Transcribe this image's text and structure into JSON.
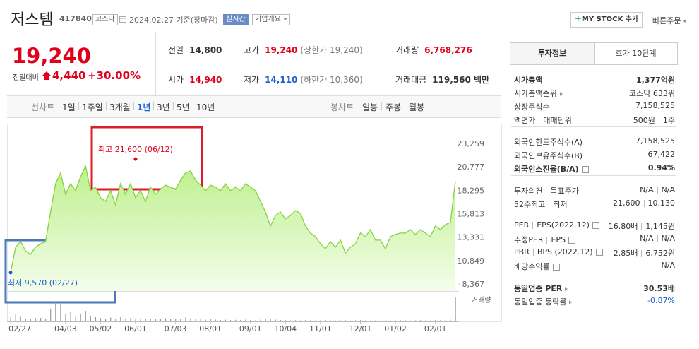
{
  "header": {
    "name": "저스템",
    "code": "417840",
    "market": "코스닥",
    "date": "2024.02.27 기준(장마감)",
    "realtime": "실시간",
    "company": "기업개요",
    "mystock": "MY STOCK 추가",
    "quick": "빠른주문"
  },
  "quote": {
    "price": "19,240",
    "change_label": "전일대비",
    "change": "4,440",
    "change_pct": "+30.00%",
    "cells": [
      [
        "전일",
        "14,800"
      ],
      [
        "고가",
        "19,240",
        "(상한가 19,240)"
      ],
      [
        "거래량",
        "6,768,276"
      ],
      [
        "시가",
        "14,940"
      ],
      [
        "저가",
        "14,110",
        "(하한가 10,360)"
      ],
      [
        "거래대금",
        "119,560 백만"
      ]
    ]
  },
  "tabs": {
    "line_label": "선차트",
    "line": [
      "1일",
      "1주일",
      "3개월",
      "1년",
      "3년",
      "5년",
      "10년"
    ],
    "active": 3,
    "candle_label": "봉차트",
    "candle": [
      "일봉",
      "주봉",
      "월봉"
    ]
  },
  "chart_data": {
    "type": "line",
    "color": "#86d33c",
    "values": [
      9570,
      12260,
      12860,
      11880,
      11510,
      12260,
      12630,
      12860,
      16000,
      18990,
      20120,
      17870,
      18990,
      18250,
      19740,
      20860,
      18250,
      18620,
      17500,
      17120,
      18250,
      16750,
      18990,
      17870,
      18990,
      17500,
      18250,
      17120,
      18620,
      17870,
      18390,
      18840,
      18620,
      18390,
      19370,
      20120,
      20340,
      19370,
      18840,
      18250,
      18840,
      18620,
      18250,
      18990,
      18250,
      18620,
      18250,
      18990,
      18620,
      18250,
      17120,
      16000,
      14500,
      15630,
      16000,
      15250,
      15630,
      16150,
      15850,
      14500,
      13760,
      13380,
      12630,
      12110,
      12860,
      12260,
      13010,
      11660,
      12260,
      12630,
      13760,
      13380,
      14130,
      13010,
      13010,
      12110,
      13380,
      13610,
      13760,
      13760,
      14130,
      13610,
      14130,
      13760,
      13380,
      14500,
      14130,
      14650,
      14880,
      19240
    ],
    "ylim": [
      7620,
      24600
    ],
    "yticks": [
      {
        "value": 23259,
        "label": "23,259"
      },
      {
        "value": 20777,
        "label": "20,777"
      },
      {
        "value": 18295,
        "label": "18,295"
      },
      {
        "value": 15813,
        "label": "15,813"
      },
      {
        "value": 13331,
        "label": "13,331"
      },
      {
        "value": 10849,
        "label": "10,849"
      },
      {
        "value": 8367,
        "label": "8,367"
      }
    ],
    "xticks": [
      {
        "value": 0,
        "label": "02/27"
      },
      {
        "value": 11,
        "label": "04/03"
      },
      {
        "value": 18,
        "label": "05/02"
      },
      {
        "value": 25,
        "label": "06/01"
      },
      {
        "value": 33,
        "label": "07/03"
      },
      {
        "value": 40,
        "label": "08/01"
      },
      {
        "value": 48,
        "label": "09/01"
      },
      {
        "value": 55,
        "label": "10/04"
      },
      {
        "value": 62,
        "label": "11/01"
      },
      {
        "value": 70,
        "label": "12/01"
      },
      {
        "value": 77,
        "label": "01/02"
      },
      {
        "value": 85,
        "label": "02/01"
      }
    ],
    "annotations": [
      {
        "text": "최고 21,600 (06/12)",
        "value": 21600,
        "x": 25,
        "color": "#e0001b"
      },
      {
        "text": "최저 9,570 (02/27)",
        "value": 9570,
        "x": 0,
        "color": "#1a5fd0"
      }
    ],
    "volume": {
      "name": "거래량",
      "color": "#9a9a9a",
      "vlim": [
        0,
        8000000
      ],
      "values": [
        1200000,
        2000000,
        1500000,
        800000,
        600000,
        900000,
        1000000,
        700000,
        3500000,
        5600000,
        4800000,
        2200000,
        2600000,
        1500000,
        2000000,
        3000000,
        1600000,
        1200000,
        900000,
        800000,
        1100000,
        700000,
        1300000,
        800000,
        1000000,
        700000,
        900000,
        600000,
        800000,
        700000,
        600000,
        900000,
        700000,
        600000,
        800000,
        1100000,
        900000,
        700000,
        600000,
        500000,
        600000,
        500000,
        400000,
        500000,
        400000,
        450000,
        400000,
        500000,
        400000,
        350000,
        500000,
        600000,
        700000,
        500000,
        400000,
        350000,
        300000,
        350000,
        300000,
        400000,
        350000,
        300000,
        350000,
        400000,
        300000,
        250000,
        300000,
        350000,
        250000,
        300000,
        350000,
        300000,
        250000,
        300000,
        250000,
        300000,
        250000,
        300000,
        350000,
        300000,
        250000,
        300000,
        350000,
        300000,
        250000,
        400000,
        350000,
        300000,
        500000,
        6768276
      ]
    }
  },
  "invest": {
    "tabs": [
      "투자정보",
      "호가 10단계"
    ],
    "groups": [
      [
        {
          "label": [
            "시가총액"
          ],
          "value": [
            "1,377억원"
          ],
          "bold": true
        },
        {
          "label": [
            "시가총액순위"
          ],
          "value": [
            "코스닥 633위"
          ],
          "link": true
        },
        {
          "label": [
            "상장주식수"
          ],
          "value": [
            "7,158,525"
          ]
        },
        {
          "label": [
            "액면가",
            "매매단위"
          ],
          "value": [
            "500원",
            "1주"
          ]
        }
      ],
      [
        {
          "label": [
            "외국인한도주식수(A)"
          ],
          "value": [
            "7,158,525"
          ]
        },
        {
          "label": [
            "외국인보유주식수(B)"
          ],
          "value": [
            "67,422"
          ]
        },
        {
          "label": [
            "외국인소진율(B/A)"
          ],
          "value": [
            "0.94%"
          ],
          "bold": true,
          "help": true
        }
      ],
      [
        {
          "label": [
            "투자의견",
            "목표주가"
          ],
          "value": [
            "N/A",
            "N/A"
          ]
        },
        {
          "label": [
            "52주최고",
            "최저"
          ],
          "value": [
            "21,600",
            "10,130"
          ]
        }
      ],
      [
        {
          "label": [
            "PER",
            "EPS(2022.12)"
          ],
          "value": [
            "16.80배",
            "1,145원"
          ],
          "help": true
        },
        {
          "label": [
            "추정PER",
            "EPS"
          ],
          "value": [
            "N/A",
            "N/A"
          ],
          "help": true
        },
        {
          "label": [
            "PBR",
            "BPS (2022.12)"
          ],
          "value": [
            "2.85배",
            "6,752원"
          ],
          "help": true
        },
        {
          "label": [
            "배당수익률"
          ],
          "value": [
            "N/A"
          ],
          "help": true
        }
      ],
      [
        {
          "label": [
            "동일업종 PER"
          ],
          "value": [
            "30.53배"
          ],
          "bold": true,
          "link": true
        },
        {
          "label": [
            "동일업종 등락률"
          ],
          "value": [
            "-0.87%"
          ],
          "link": true,
          "color": "#1a5fd0"
        }
      ]
    ]
  }
}
